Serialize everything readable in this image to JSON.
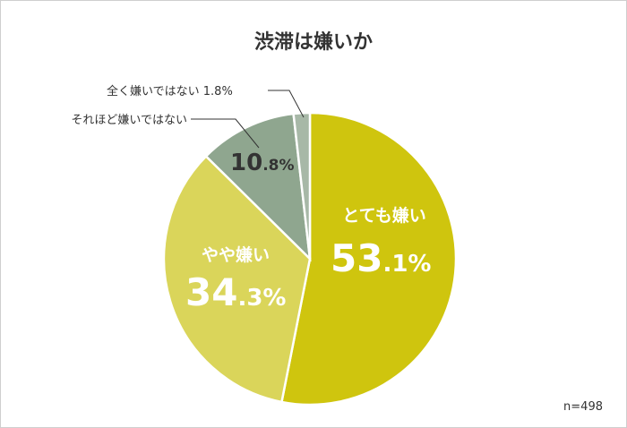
{
  "chart_data": {
    "type": "pie",
    "title": "渋滞は嫌いか",
    "note": "n=498",
    "slices": [
      {
        "label": "とても嫌い",
        "value": 53.1,
        "int": "53",
        "dec": ".1%",
        "color": "#cfc50e"
      },
      {
        "label": "やや嫌い",
        "value": 34.3,
        "int": "34",
        "dec": ".3%",
        "color": "#dad55a"
      },
      {
        "label": "それほど嫌いではない",
        "value": 10.8,
        "int": "10",
        "dec": ".8%",
        "color": "#8fa68f"
      },
      {
        "label": "全く嫌いではない",
        "value": 1.8,
        "pct": "1.8%",
        "color": "#a7b8a7"
      }
    ]
  }
}
